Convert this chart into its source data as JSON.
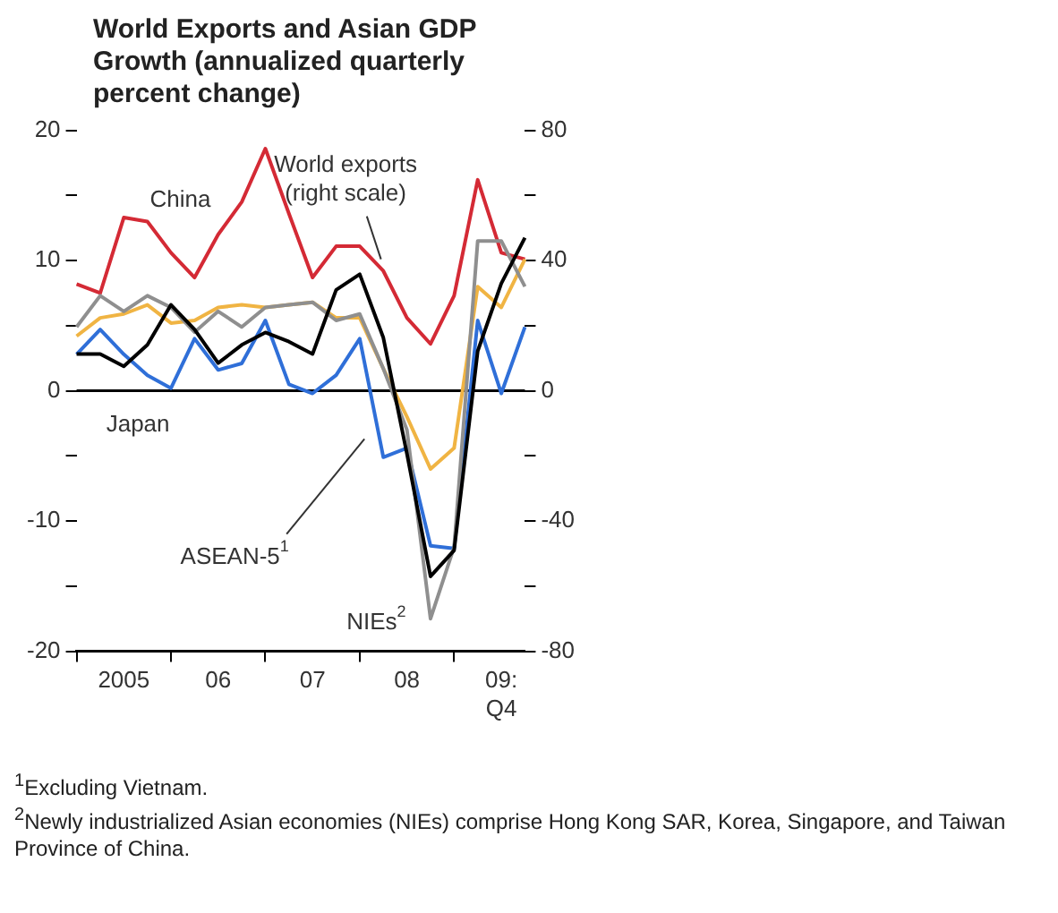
{
  "chart_data": {
    "type": "line",
    "title": "World Exports and Asian GDP Growth (annualized quarterly percent change)",
    "categories": [
      null,
      null,
      "2005",
      null,
      null,
      null,
      "06",
      null,
      null,
      null,
      "07",
      null,
      null,
      null,
      "08",
      null,
      null,
      null,
      "09: Q4",
      null
    ],
    "series": [
      {
        "name": "China",
        "color": "#d42a35",
        "values": [
          8.2,
          7.5,
          13.3,
          13.0,
          10.6,
          8.7,
          12.0,
          14.5,
          18.6,
          13.6,
          8.7,
          11.1,
          11.1,
          9.2,
          5.6,
          3.6,
          7.3,
          16.2,
          10.6,
          10.1
        ]
      },
      {
        "name": "Japan",
        "color": "#2f6fd8",
        "values": [
          2.8,
          4.7,
          2.8,
          1.2,
          0.2,
          4.0,
          1.6,
          2.1,
          5.4,
          0.5,
          -0.2,
          1.2,
          4.0,
          -5.1,
          -4.4,
          -11.9,
          -12.1,
          5.4,
          -0.2,
          4.9
        ]
      },
      {
        "name": "ASEAN-5$^{1}$",
        "color": "#f0b443",
        "values": [
          4.2,
          5.6,
          5.9,
          6.6,
          5.2,
          5.4,
          6.4,
          6.6,
          6.4,
          6.6,
          6.8,
          5.6,
          5.6,
          1.7,
          -2.0,
          -6.0,
          -4.4,
          8.0,
          6.4,
          10.1
        ]
      },
      {
        "name": "NIEs$^{2}$",
        "color": "#8f8f8f",
        "values": [
          4.9,
          7.3,
          6.1,
          7.3,
          6.4,
          4.5,
          6.1,
          4.9,
          6.4,
          6.6,
          6.8,
          5.4,
          5.9,
          1.7,
          -3.0,
          -17.5,
          -12.0,
          11.5,
          11.5,
          8.0
        ]
      },
      {
        "name": "World exports (right scale)",
        "color": "#000000",
        "axis": "y2",
        "values": [
          11.3,
          11.3,
          7.5,
          14.1,
          26.4,
          18.8,
          8.5,
          14.1,
          17.9,
          15.1,
          11.3,
          31.0,
          35.8,
          16.3,
          -19.3,
          -57.0,
          -49.0,
          12.2,
          33.0,
          47.0
        ]
      }
    ],
    "ylim": [
      -20,
      20
    ],
    "yticks": [
      -20,
      {
        "value": -15,
        "label": null
      },
      -10,
      {
        "value": -5,
        "label": null
      },
      0,
      {
        "value": 5,
        "label": null
      },
      10,
      {
        "value": 15,
        "label": null
      },
      20
    ],
    "y2lim": [
      -80,
      80
    ],
    "y2ticks": [
      -80,
      {
        "value": -60,
        "label": null
      },
      -40,
      {
        "value": -20,
        "label": null
      },
      0,
      {
        "value": 20,
        "label": null
      },
      40,
      {
        "value": 60,
        "label": null
      },
      80
    ],
    "ref_lines": [
      {
        "axis": "y",
        "value": 0,
        "color": "#000000"
      }
    ],
    "grid": false,
    "legend": false,
    "annotations": [
      "$^{1}$Excluding Vietnam.",
      "$^{2}$Newly industrialized Asian economies (NIEs) comprise Hong Kong SAR, Korea, Singapore, and Taiwan Province of China."
    ]
  }
}
